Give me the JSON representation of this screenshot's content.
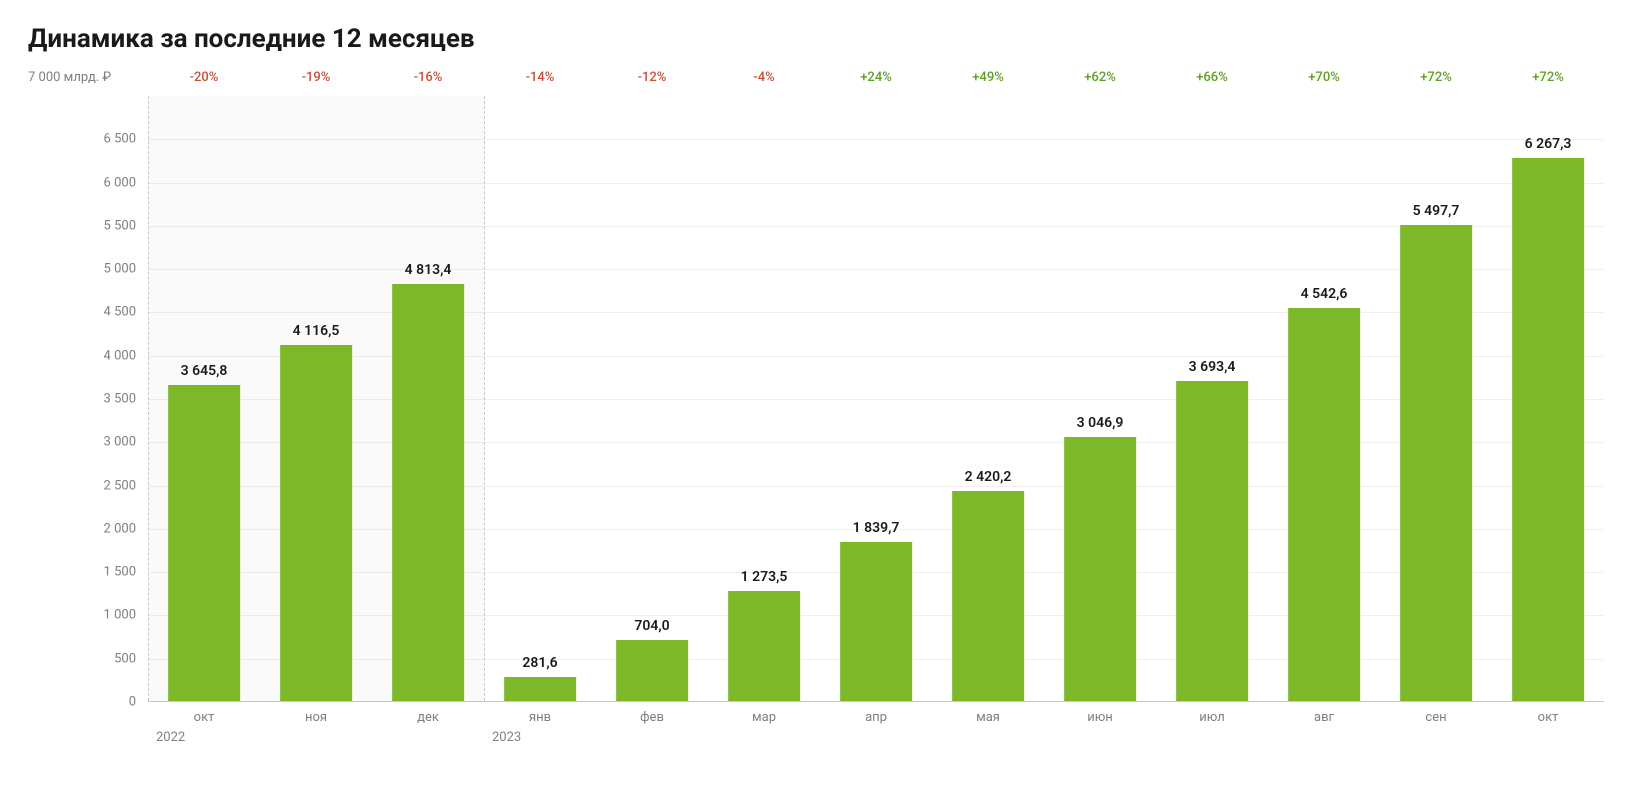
{
  "title": "Динамика за последние 12 месяцев",
  "chart": {
    "type": "bar",
    "y_unit": "7 000 млрд. ₽",
    "y_max": 7000,
    "y_ticks": [
      0,
      500,
      1000,
      1500,
      2000,
      2500,
      3000,
      3500,
      4000,
      4500,
      5000,
      5500,
      6000,
      6500
    ],
    "y_tick_labels": [
      "0",
      "500",
      "1 000",
      "1 500",
      "2 000",
      "2 500",
      "3 000",
      "3 500",
      "4 000",
      "4 500",
      "5 000",
      "5 500",
      "6 000",
      "6 500"
    ],
    "bar_color": "#7cb828",
    "shade_color": "rgba(128,128,128,0.04)",
    "grid_color": "#f0f0f0",
    "sep_color": "#c8c8c8",
    "pct_neg_color": "#c94f3a",
    "pct_pos_color": "#5da022",
    "text_color": "#1a1a1a",
    "muted_color": "#808080",
    "year_groups": [
      {
        "label": "2022",
        "start_index": 0
      },
      {
        "label": "2023",
        "start_index": 3
      }
    ],
    "bars": [
      {
        "month": "окт",
        "value": 3645.8,
        "value_label": "3 645,8",
        "pct": "-20%",
        "pct_sign": "neg"
      },
      {
        "month": "ноя",
        "value": 4116.5,
        "value_label": "4 116,5",
        "pct": "-19%",
        "pct_sign": "neg"
      },
      {
        "month": "дек",
        "value": 4813.4,
        "value_label": "4 813,4",
        "pct": "-16%",
        "pct_sign": "neg"
      },
      {
        "month": "янв",
        "value": 281.6,
        "value_label": "281,6",
        "pct": "-14%",
        "pct_sign": "neg"
      },
      {
        "month": "фев",
        "value": 704.0,
        "value_label": "704,0",
        "pct": "-12%",
        "pct_sign": "neg"
      },
      {
        "month": "мар",
        "value": 1273.5,
        "value_label": "1 273,5",
        "pct": "-4%",
        "pct_sign": "neg"
      },
      {
        "month": "апр",
        "value": 1839.7,
        "value_label": "1 839,7",
        "pct": "+24%",
        "pct_sign": "pos"
      },
      {
        "month": "мая",
        "value": 2420.2,
        "value_label": "2 420,2",
        "pct": "+49%",
        "pct_sign": "pos"
      },
      {
        "month": "июн",
        "value": 3046.9,
        "value_label": "3 046,9",
        "pct": "+62%",
        "pct_sign": "pos"
      },
      {
        "month": "июл",
        "value": 3693.4,
        "value_label": "3 693,4",
        "pct": "+66%",
        "pct_sign": "pos"
      },
      {
        "month": "авг",
        "value": 4542.6,
        "value_label": "4 542,6",
        "pct": "+70%",
        "pct_sign": "pos"
      },
      {
        "month": "сен",
        "value": 5497.7,
        "value_label": "5 497,7",
        "pct": "+72%",
        "pct_sign": "pos"
      },
      {
        "month": "окт",
        "value": 6267.3,
        "value_label": "6 267,3",
        "pct": "+72%",
        "pct_sign": "pos"
      }
    ]
  }
}
